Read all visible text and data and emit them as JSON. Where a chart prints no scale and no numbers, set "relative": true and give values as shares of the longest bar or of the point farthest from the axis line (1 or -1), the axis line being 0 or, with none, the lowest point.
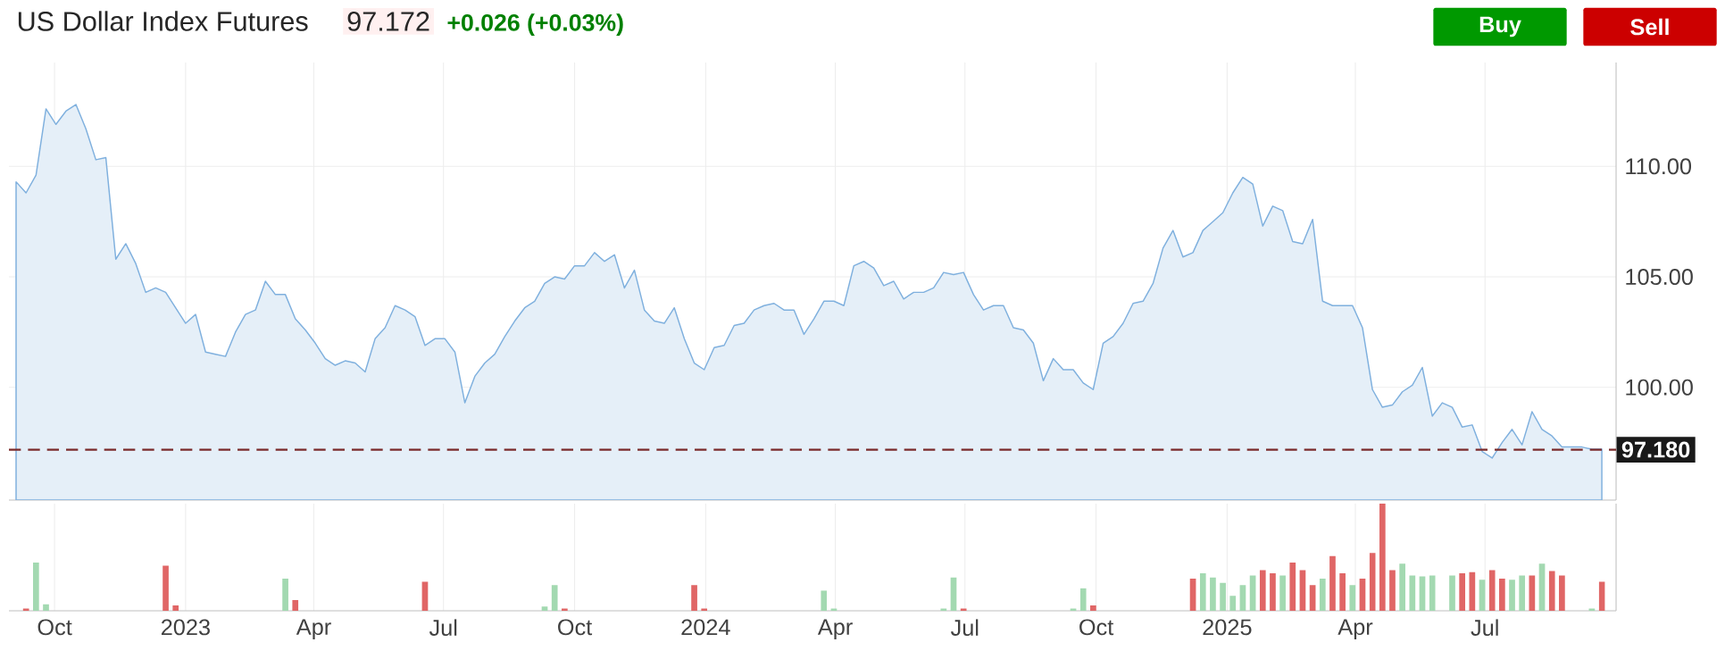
{
  "chart_data": [
    {
      "type": "area",
      "title": "US Dollar Index Futures",
      "annotations": [
        "97.172",
        "+0.026 (+0.03%)",
        "Buy",
        "Sell"
      ],
      "color": "#7fb0de",
      "grid": true,
      "tick_labels": "y",
      "xlim": [
        "2022-08-30",
        "2025-10-01"
      ],
      "ylim": [
        94.9,
        114.7
      ],
      "yticks": [
        {
          "value": 100,
          "label": "100.00"
        },
        {
          "value": 105,
          "label": "105.00"
        },
        {
          "value": 110,
          "label": "110.00"
        }
      ],
      "xticks": [
        {
          "value": "2022-10-01",
          "label": null
        },
        {
          "value": "2023-01-01",
          "label": null
        },
        {
          "value": "2023-04-01",
          "label": null
        },
        {
          "value": "2023-07-01",
          "label": null
        },
        {
          "value": "2023-10-01",
          "label": null
        },
        {
          "value": "2024-01-01",
          "label": null
        },
        {
          "value": "2024-04-01",
          "label": null
        },
        {
          "value": "2024-07-01",
          "label": null
        },
        {
          "value": "2024-10-01",
          "label": null
        },
        {
          "value": "2025-01-01",
          "label": null
        },
        {
          "value": "2025-04-01",
          "label": null
        },
        {
          "value": "2025-07-01",
          "label": null
        }
      ],
      "ref_lines": [
        {
          "axis": "y",
          "value": 97.18,
          "label": "97.180",
          "color": "#7a2a2a",
          "line_style": "dashed"
        }
      ],
      "x": [
        "2022-09-04",
        "2022-09-11",
        "2022-09-18",
        "2022-09-25",
        "2022-10-02",
        "2022-10-09",
        "2022-10-16",
        "2022-10-23",
        "2022-10-30",
        "2022-11-06",
        "2022-11-13",
        "2022-11-20",
        "2022-11-27",
        "2022-12-04",
        "2022-12-11",
        "2022-12-18",
        "2022-12-25",
        "2023-01-01",
        "2023-01-08",
        "2023-01-15",
        "2023-01-22",
        "2023-01-29",
        "2023-02-05",
        "2023-02-12",
        "2023-02-19",
        "2023-02-26",
        "2023-03-05",
        "2023-03-12",
        "2023-03-19",
        "2023-03-26",
        "2023-04-02",
        "2023-04-09",
        "2023-04-16",
        "2023-04-23",
        "2023-04-30",
        "2023-05-07",
        "2023-05-14",
        "2023-05-21",
        "2023-05-28",
        "2023-06-04",
        "2023-06-11",
        "2023-06-18",
        "2023-06-25",
        "2023-07-02",
        "2023-07-09",
        "2023-07-16",
        "2023-07-23",
        "2023-07-30",
        "2023-08-06",
        "2023-08-13",
        "2023-08-20",
        "2023-08-27",
        "2023-09-03",
        "2023-09-10",
        "2023-09-17",
        "2023-09-24",
        "2023-10-01",
        "2023-10-08",
        "2023-10-15",
        "2023-10-22",
        "2023-10-29",
        "2023-11-05",
        "2023-11-12",
        "2023-11-19",
        "2023-11-26",
        "2023-12-03",
        "2023-12-10",
        "2023-12-17",
        "2023-12-24",
        "2023-12-31",
        "2024-01-07",
        "2024-01-14",
        "2024-01-21",
        "2024-01-28",
        "2024-02-04",
        "2024-02-11",
        "2024-02-18",
        "2024-02-25",
        "2024-03-03",
        "2024-03-10",
        "2024-03-17",
        "2024-03-24",
        "2024-03-31",
        "2024-04-07",
        "2024-04-14",
        "2024-04-21",
        "2024-04-28",
        "2024-05-05",
        "2024-05-12",
        "2024-05-19",
        "2024-05-26",
        "2024-06-02",
        "2024-06-09",
        "2024-06-16",
        "2024-06-23",
        "2024-06-30",
        "2024-07-07",
        "2024-07-14",
        "2024-07-21",
        "2024-07-28",
        "2024-08-04",
        "2024-08-11",
        "2024-08-18",
        "2024-08-25",
        "2024-09-01",
        "2024-09-08",
        "2024-09-15",
        "2024-09-22",
        "2024-09-29",
        "2024-10-06",
        "2024-10-13",
        "2024-10-20",
        "2024-10-27",
        "2024-11-03",
        "2024-11-10",
        "2024-11-17",
        "2024-11-24",
        "2024-12-01",
        "2024-12-08",
        "2024-12-15",
        "2024-12-22",
        "2024-12-29",
        "2025-01-05",
        "2025-01-12",
        "2025-01-19",
        "2025-01-26",
        "2025-02-02",
        "2025-02-09",
        "2025-02-16",
        "2025-02-23",
        "2025-03-02",
        "2025-03-09",
        "2025-03-16",
        "2025-03-23",
        "2025-03-30",
        "2025-04-06",
        "2025-04-13",
        "2025-04-20",
        "2025-04-27",
        "2025-05-04",
        "2025-05-11",
        "2025-05-18",
        "2025-05-25",
        "2025-06-01",
        "2025-06-08",
        "2025-06-15",
        "2025-06-22",
        "2025-06-29",
        "2025-07-06",
        "2025-07-13",
        "2025-07-20",
        "2025-07-27",
        "2025-08-03",
        "2025-08-10",
        "2025-08-17",
        "2025-08-24",
        "2025-08-31",
        "2025-09-07",
        "2025-09-14",
        "2025-09-21"
      ],
      "values": [
        109.3,
        108.8,
        109.6,
        112.6,
        111.9,
        112.5,
        112.8,
        111.7,
        110.3,
        110.4,
        105.8,
        106.5,
        105.6,
        104.3,
        104.5,
        104.3,
        103.6,
        102.9,
        103.3,
        101.6,
        101.5,
        101.4,
        102.5,
        103.3,
        103.5,
        104.8,
        104.2,
        104.2,
        103.1,
        102.6,
        102.0,
        101.3,
        101.0,
        101.2,
        101.1,
        100.7,
        102.2,
        102.7,
        103.7,
        103.5,
        103.2,
        101.9,
        102.2,
        102.2,
        101.6,
        99.3,
        100.5,
        101.1,
        101.5,
        102.3,
        103.0,
        103.6,
        103.9,
        104.7,
        105.0,
        104.9,
        105.5,
        105.5,
        106.1,
        105.7,
        106.0,
        104.5,
        105.3,
        103.5,
        103.0,
        102.9,
        103.6,
        102.2,
        101.1,
        100.8,
        101.8,
        101.9,
        102.8,
        102.9,
        103.5,
        103.7,
        103.8,
        103.5,
        103.5,
        102.4,
        103.1,
        103.9,
        103.9,
        103.7,
        105.5,
        105.7,
        105.4,
        104.6,
        104.8,
        104.0,
        104.3,
        104.3,
        104.5,
        105.2,
        105.1,
        105.2,
        104.2,
        103.5,
        103.7,
        103.7,
        102.7,
        102.6,
        102.0,
        100.3,
        101.3,
        100.8,
        100.8,
        100.2,
        99.9,
        102.0,
        102.3,
        102.9,
        103.8,
        103.9,
        104.7,
        106.3,
        107.1,
        105.9,
        106.1,
        107.1,
        107.5,
        107.9,
        108.8,
        109.5,
        109.2,
        107.3,
        108.2,
        108.0,
        106.6,
        106.5,
        107.6,
        103.9,
        103.7,
        103.7,
        103.7,
        102.7,
        99.9,
        99.1,
        99.2,
        99.8,
        100.1,
        100.9,
        98.7,
        99.3,
        99.1,
        98.2,
        98.3,
        97.1,
        96.8,
        97.5,
        98.1,
        97.4,
        98.9,
        98.1,
        97.8,
        97.3,
        97.3,
        97.3,
        97.2,
        97.2
      ]
    },
    {
      "type": "bar",
      "relative": true,
      "grid": "x",
      "tick_labels": "x",
      "xlim": [
        "2022-08-30",
        "2025-10-01"
      ],
      "xticks": [
        {
          "value": "2022-10-01",
          "label": "Oct"
        },
        {
          "value": "2023-01-01",
          "label": "2023"
        },
        {
          "value": "2023-04-01",
          "label": "Apr"
        },
        {
          "value": "2023-07-01",
          "label": "Jul"
        },
        {
          "value": "2023-10-01",
          "label": "Oct"
        },
        {
          "value": "2024-01-01",
          "label": "2024"
        },
        {
          "value": "2024-04-01",
          "label": "Apr"
        },
        {
          "value": "2024-07-01",
          "label": "Jul"
        },
        {
          "value": "2024-10-01",
          "label": "Oct"
        },
        {
          "value": "2025-01-01",
          "label": "2025"
        },
        {
          "value": "2025-04-01",
          "label": "Apr"
        },
        {
          "value": "2025-07-01",
          "label": "Jul"
        }
      ],
      "x": [
        "2022-09-11",
        "2022-09-18",
        "2022-09-25",
        "2022-12-18",
        "2022-12-25",
        "2023-03-12",
        "2023-03-19",
        "2023-06-18",
        "2023-09-10",
        "2023-09-17",
        "2023-09-24",
        "2023-12-24",
        "2023-12-31",
        "2024-03-24",
        "2024-03-31",
        "2024-06-16",
        "2024-06-23",
        "2024-06-30",
        "2024-09-15",
        "2024-09-22",
        "2024-09-29",
        "2024-12-08",
        "2024-12-15",
        "2024-12-22",
        "2024-12-29",
        "2025-01-05",
        "2025-01-12",
        "2025-01-19",
        "2025-01-26",
        "2025-02-02",
        "2025-02-09",
        "2025-02-16",
        "2025-02-23",
        "2025-03-02",
        "2025-03-09",
        "2025-03-16",
        "2025-03-23",
        "2025-03-30",
        "2025-04-06",
        "2025-04-13",
        "2025-04-20",
        "2025-04-27",
        "2025-05-04",
        "2025-05-11",
        "2025-05-18",
        "2025-05-25",
        "2025-06-08",
        "2025-06-15",
        "2025-06-22",
        "2025-06-29",
        "2025-07-06",
        "2025-07-13",
        "2025-07-20",
        "2025-07-27",
        "2025-08-03",
        "2025-08-10",
        "2025-08-17",
        "2025-08-24",
        "2025-09-14",
        "2025-09-21"
      ],
      "values": [
        0.02,
        0.45,
        0.06,
        0.42,
        0.05,
        0.3,
        0.1,
        0.27,
        0.04,
        0.24,
        0.02,
        0.24,
        0.02,
        0.19,
        0.02,
        0.02,
        0.31,
        0.02,
        0.02,
        0.21,
        0.05,
        0.3,
        0.35,
        0.31,
        0.26,
        0.14,
        0.24,
        0.33,
        0.38,
        0.35,
        0.33,
        0.45,
        0.38,
        0.24,
        0.3,
        0.51,
        0.35,
        0.24,
        0.3,
        0.54,
        1,
        0.38,
        0.44,
        0.33,
        0.32,
        0.33,
        0.33,
        0.35,
        0.36,
        0.29,
        0.38,
        0.3,
        0.29,
        0.33,
        0.33,
        0.44,
        0.37,
        0.33,
        0.02,
        0.27
      ],
      "colors": [
        "#e06666",
        "#a3d9b1",
        "#a3d9b1",
        "#e06666",
        "#e06666",
        "#a3d9b1",
        "#e06666",
        "#e06666",
        "#a3d9b1",
        "#a3d9b1",
        "#e06666",
        "#e06666",
        "#e06666",
        "#a3d9b1",
        "#a3d9b1",
        "#a3d9b1",
        "#a3d9b1",
        "#e06666",
        "#a3d9b1",
        "#a3d9b1",
        "#e06666",
        "#e06666",
        "#a3d9b1",
        "#a3d9b1",
        "#a3d9b1",
        "#a3d9b1",
        "#a3d9b1",
        "#a3d9b1",
        "#e06666",
        "#e06666",
        "#a3d9b1",
        "#e06666",
        "#e06666",
        "#e06666",
        "#a3d9b1",
        "#e06666",
        "#e06666",
        "#a3d9b1",
        "#e06666",
        "#e06666",
        "#e06666",
        "#e06666",
        "#a3d9b1",
        "#a3d9b1",
        "#a3d9b1",
        "#a3d9b1",
        "#a3d9b1",
        "#e06666",
        "#e06666",
        "#a3d9b1",
        "#e06666",
        "#e06666",
        "#a3d9b1",
        "#a3d9b1",
        "#e06666",
        "#a3d9b1",
        "#e06666",
        "#e06666",
        "#a3d9b1",
        "#e06666"
      ]
    }
  ]
}
